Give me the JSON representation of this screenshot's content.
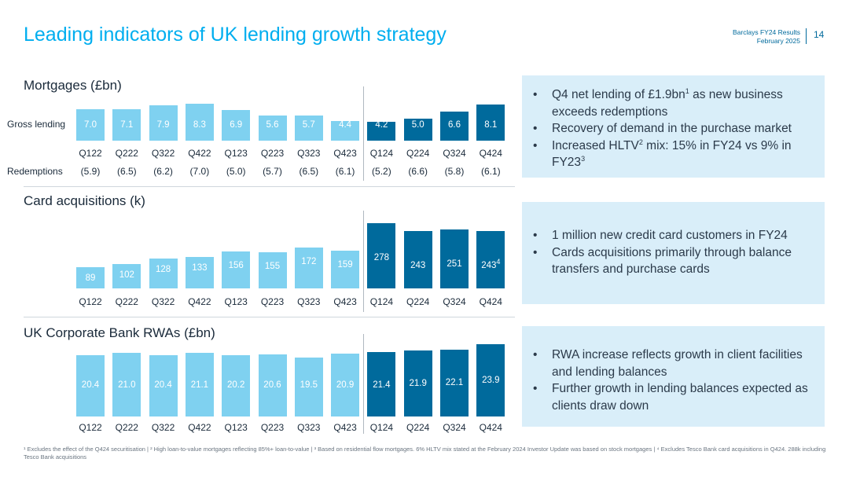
{
  "header": {
    "title": "Leading indicators of UK lending growth strategy",
    "meta_line1": "Barclays FY24 Results",
    "meta_line2": "February 2025",
    "page_number": "14"
  },
  "colors": {
    "accent": "#00aeef",
    "bar_light": "#7fd1f0",
    "bar_dark": "#006a9c",
    "panel_bg": "#d9eef9"
  },
  "chart_data": [
    {
      "type": "bar",
      "title": "Mortgages (£bn)",
      "row_label": "Gross lending",
      "categories": [
        "Q122",
        "Q222",
        "Q322",
        "Q422",
        "Q123",
        "Q223",
        "Q323",
        "Q423",
        "Q124",
        "Q224",
        "Q324",
        "Q424"
      ],
      "values": [
        7.0,
        7.1,
        7.9,
        8.3,
        6.9,
        5.6,
        5.7,
        4.4,
        4.2,
        5.0,
        6.6,
        8.1
      ],
      "value_labels": [
        "7.0",
        "7.1",
        "7.9",
        "8.3",
        "6.9",
        "5.6",
        "5.7",
        "4.4",
        "4.2",
        "5.0",
        "6.6",
        "8.1"
      ],
      "secondary_label": "Redemptions",
      "secondary_values": [
        "(5.9)",
        "(6.5)",
        "(6.2)",
        "(7.0)",
        "(5.0)",
        "(5.7)",
        "(6.5)",
        "(6.1)",
        "(5.2)",
        "(6.6)",
        "(5.8)",
        "(6.1)"
      ],
      "highlight_from_index": 8,
      "ylim": [
        0,
        9
      ]
    },
    {
      "type": "bar",
      "title": "Card acquisitions (k)",
      "categories": [
        "Q122",
        "Q222",
        "Q322",
        "Q422",
        "Q123",
        "Q223",
        "Q323",
        "Q423",
        "Q124",
        "Q224",
        "Q324",
        "Q424"
      ],
      "values": [
        89,
        102,
        128,
        133,
        156,
        155,
        172,
        159,
        278,
        243,
        251,
        243
      ],
      "value_labels": [
        "89",
        "102",
        "128",
        "133",
        "156",
        "155",
        "172",
        "159",
        "278",
        "243",
        "251",
        "243"
      ],
      "value_label_sup": [
        "",
        "",
        "",
        "",
        "",
        "",
        "",
        "",
        "",
        "",
        "",
        "4"
      ],
      "highlight_from_index": 8,
      "ylim": [
        0,
        290
      ]
    },
    {
      "type": "bar",
      "title": "UK Corporate Bank RWAs (£bn)",
      "categories": [
        "Q122",
        "Q222",
        "Q322",
        "Q422",
        "Q123",
        "Q223",
        "Q323",
        "Q423",
        "Q124",
        "Q224",
        "Q324",
        "Q424"
      ],
      "values": [
        20.4,
        21.0,
        20.4,
        21.1,
        20.2,
        20.6,
        19.5,
        20.9,
        21.4,
        21.9,
        22.1,
        23.9
      ],
      "value_labels": [
        "20.4",
        "21.0",
        "20.4",
        "21.1",
        "20.2",
        "20.6",
        "19.5",
        "20.9",
        "21.4",
        "21.9",
        "22.1",
        "23.9"
      ],
      "highlight_from_index": 8,
      "ylim": [
        0,
        24.5
      ]
    }
  ],
  "panels": [
    {
      "bullets": [
        {
          "text": "Q4 net lending of £1.9bn",
          "sup": "1",
          "tail": " as new business exceeds redemptions"
        },
        {
          "text": "Recovery of demand in the purchase market",
          "sup": "",
          "tail": ""
        },
        {
          "text": "Increased HLTV",
          "sup": "2",
          "tail": " mix: 15% in FY24 vs 9% in FY23",
          "sup2": "3"
        }
      ]
    },
    {
      "bullets": [
        {
          "text": "1 million new credit card customers in FY24",
          "sup": "",
          "tail": ""
        },
        {
          "text": "Cards acquisitions primarily through balance transfers and purchase cards",
          "sup": "",
          "tail": ""
        }
      ]
    },
    {
      "bullets": [
        {
          "text": "RWA increase reflects growth in client facilities and lending balances",
          "sup": "",
          "tail": ""
        },
        {
          "text": "Further growth in lending balances expected as clients draw down",
          "sup": "",
          "tail": ""
        }
      ]
    }
  ],
  "footnote": "¹ Excludes the effect of the Q424 securitisation | ² High loan-to-value mortgages reflecting 85%+ loan-to-value | ³ Based on residential flow mortgages. 6% HLTV mix stated at the February 2024 Investor Update was based on stock mortgages | ⁴ Excludes Tesco Bank card acquisitions in Q424. 288k including Tesco Bank acquisitions"
}
